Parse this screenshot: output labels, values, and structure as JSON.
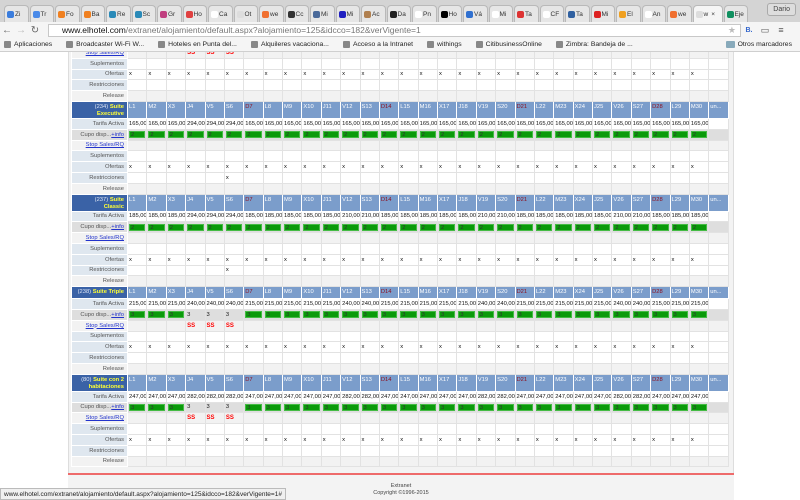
{
  "browser": {
    "tabs": [
      "Zi",
      "Tr",
      "Fo",
      "Ba",
      "Re",
      "Sc",
      "Gr",
      "Ho",
      "Ca",
      "Ot",
      "we",
      "Cc",
      "Mi",
      "Mi",
      "Ac",
      "Da",
      "Pn",
      "Ho",
      "Vá",
      "Mi",
      "Ta",
      "CF",
      "Ta",
      "Mi",
      "El",
      "An",
      "we",
      "w",
      "Eje"
    ],
    "tab_colors": [
      "#3b7ddd",
      "#4a8ae8",
      "#f08020",
      "#f08020",
      "#2a8ab8",
      "#2a8ab8",
      "#c04080",
      "#e04040",
      "#ffffff",
      "#dddddd",
      "#f07030",
      "#333333",
      "#4a6a9a",
      "#2020c0",
      "#b08050",
      "#222222",
      "#ffffff",
      "#000000",
      "#3070d0",
      "#ffffff",
      "#dd3333",
      "#ffffff",
      "#3060a0",
      "#dd2222",
      "#f0a020",
      "#ffffff",
      "#f07030",
      "#dddddd",
      "#109060"
    ],
    "active_tab_index": 27,
    "active_tab_close": "×",
    "user": "Dario",
    "url_host": "www.elhotel.com",
    "url_path": "/extranet/alojamiento/default.aspx?alojamiento=125&idcco=182&verVigente=1",
    "bookmarks": [
      "Aplicaciones",
      "Broadcaster Wi-Fi W...",
      "Hoteles en Punta del...",
      "Alquileres vacaciona...",
      "Acceso a la Intranet",
      "withings",
      "CitibusinessOnline",
      "Zimbra: Bandeja de ..."
    ],
    "other_bookmarks": "Otros marcadores",
    "status_url": "www.elhotel.com/extranet/alojamiento/default.aspx?alojamiento=125&idcco=182&verVigente=1#"
  },
  "labels": {
    "tarifa": "Tarifa Activa",
    "cupo": "Cupo disp...",
    "info": "+info",
    "stop": "Stop Sales/RQ",
    "suplementos": "Suplementos",
    "ofertas": "Ofertas",
    "restricciones": "Restricciones",
    "release": "Release",
    "x": "x",
    "ss": "SS"
  },
  "days": [
    "L1",
    "M2",
    "X3",
    "J4",
    "V5",
    "S6",
    "D7",
    "L8",
    "M9",
    "X10",
    "J11",
    "V12",
    "S13",
    "D14",
    "L15",
    "M16",
    "X17",
    "J18",
    "V19",
    "S20",
    "D21",
    "L22",
    "M23",
    "X24",
    "J25",
    "V26",
    "S27",
    "D28",
    "L29",
    "M30"
  ],
  "extra_col": "un...",
  "top_partial": {
    "ss_days": [
      "J4",
      "V5",
      "S6"
    ]
  },
  "sections": [
    {
      "id": "(234)",
      "name": "Suite Executive",
      "cupo": "2",
      "rates": [
        "165,00",
        "165,00",
        "165,00",
        "294,00",
        "294,00",
        "294,00",
        "165,00",
        "165,00",
        "165,00",
        "165,00",
        "165,00",
        "165,00",
        "165,00",
        "165,00",
        "165,00",
        "165,00",
        "165,00",
        "165,00",
        "165,00",
        "165,00",
        "165,00",
        "165,00",
        "165,00",
        "165,00",
        "165,00",
        "165,00",
        "165,00",
        "165,00",
        "165,00",
        "165,00"
      ],
      "ss_days": [],
      "restricciones_days": [
        "S6"
      ]
    },
    {
      "id": "(237)",
      "name": "Suite Classic",
      "cupo": "2",
      "rates": [
        "185,00",
        "185,00",
        "185,00",
        "294,00",
        "294,00",
        "294,00",
        "185,00",
        "185,00",
        "185,00",
        "185,00",
        "185,00",
        "210,00",
        "210,00",
        "185,00",
        "185,00",
        "185,00",
        "185,00",
        "185,00",
        "210,00",
        "210,00",
        "185,00",
        "185,00",
        "185,00",
        "185,00",
        "185,00",
        "210,00",
        "210,00",
        "185,00",
        "185,00",
        "185,00"
      ],
      "ss_days": [],
      "restricciones_days": [
        "S6"
      ]
    },
    {
      "id": "(238)",
      "name": "Suite Triple",
      "cupo": "3",
      "rates": [
        "215,00",
        "215,00",
        "215,00",
        "240,00",
        "240,00",
        "240,00",
        "215,00",
        "215,00",
        "215,00",
        "215,00",
        "215,00",
        "240,00",
        "240,00",
        "215,00",
        "215,00",
        "215,00",
        "215,00",
        "215,00",
        "240,00",
        "240,00",
        "215,00",
        "215,00",
        "215,00",
        "215,00",
        "215,00",
        "240,00",
        "240,00",
        "215,00",
        "215,00",
        "215,00"
      ],
      "ss_days": [
        "J4",
        "V5",
        "S6"
      ],
      "restricciones_days": []
    },
    {
      "id": "(80)",
      "name": "Suite con 2 habitaciones",
      "cupo": "3",
      "rates": [
        "247,00",
        "247,00",
        "247,00",
        "282,00",
        "282,00",
        "282,00",
        "247,00",
        "247,00",
        "247,00",
        "247,00",
        "247,00",
        "282,00",
        "282,00",
        "247,00",
        "247,00",
        "247,00",
        "247,00",
        "247,00",
        "282,00",
        "282,00",
        "247,00",
        "247,00",
        "247,00",
        "247,00",
        "247,00",
        "282,00",
        "282,00",
        "247,00",
        "247,00",
        "247,00"
      ],
      "ss_days": [
        "J4",
        "V5",
        "S6"
      ],
      "restricciones_days": []
    }
  ],
  "footer": {
    "line1": "Extranet",
    "line2": "Copyright ©1996-2015"
  },
  "colors": {
    "header": "#7b9dcb",
    "header_name": "#3a62a6",
    "available": "#0a9a0a",
    "stop_sales": "#ff0000",
    "sunday": "#8b1020"
  }
}
